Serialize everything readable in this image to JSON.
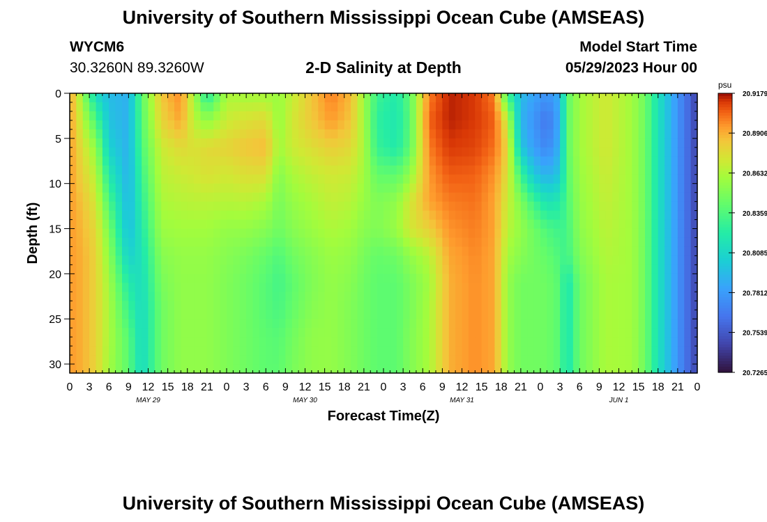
{
  "header": {
    "title": "University of Southern Mississippi Ocean Cube (AMSEAS)",
    "station": "WYCM6",
    "coordinates": "30.3260N  89.3260W",
    "subtitle": "2-D Salinity at Depth",
    "model_start_label": "Model Start Time",
    "model_start_value": "05/29/2023 Hour 00",
    "repeated_title": "University of Southern Mississippi Ocean Cube (AMSEAS)"
  },
  "chart_data": {
    "type": "heatmap",
    "title": "2-D Salinity at Depth",
    "xlabel": "Forecast Time(Z)",
    "ylabel": "Depth (ft)",
    "x_range_hours": [
      0,
      96
    ],
    "y_range_ft": [
      0,
      31
    ],
    "x_tick_labels": [
      "0",
      "3",
      "6",
      "9",
      "12",
      "15",
      "18",
      "21",
      "0",
      "3",
      "6",
      "9",
      "12",
      "15",
      "18",
      "21",
      "0",
      "3",
      "6",
      "9",
      "12",
      "15",
      "18",
      "21",
      "0",
      "3",
      "6",
      "9",
      "12",
      "15",
      "18",
      "21",
      "0"
    ],
    "y_ticks": [
      0,
      5,
      10,
      15,
      20,
      25,
      30
    ],
    "day_labels": [
      {
        "label": "MAY 29",
        "hour": 12
      },
      {
        "label": "MAY 30",
        "hour": 36
      },
      {
        "label": "MAY 31",
        "hour": 60
      },
      {
        "label": "JUN 1",
        "hour": 84
      }
    ],
    "colorbar": {
      "unit": "psu",
      "min": 20.7265,
      "max": 20.9179,
      "tick_labels": [
        "20.9179",
        "20.8906",
        "20.8632",
        "20.8359",
        "20.8085",
        "20.7812",
        "20.7539",
        "20.7265"
      ],
      "tick_values": [
        20.9179,
        20.8906,
        20.8632,
        20.8359,
        20.8085,
        20.7812,
        20.7539,
        20.7265
      ]
    },
    "field": {
      "description": "approximate salinity (psu) at hour x and depth y read from the color shading",
      "depths": [
        0,
        3,
        6,
        9,
        12,
        15,
        18,
        21,
        24,
        27,
        31
      ],
      "columns": [
        {
          "hour": 0,
          "values": [
            20.895,
            20.895,
            20.895,
            20.895,
            20.895,
            20.895,
            20.895,
            20.895,
            20.895,
            20.895,
            20.895
          ]
        },
        {
          "hour": 2,
          "values": [
            20.855,
            20.865,
            20.875,
            20.88,
            20.885,
            20.888,
            20.89,
            20.89,
            20.89,
            20.89,
            20.89
          ]
        },
        {
          "hour": 4,
          "values": [
            20.81,
            20.835,
            20.855,
            20.865,
            20.872,
            20.878,
            20.88,
            20.88,
            20.88,
            20.88,
            20.88
          ]
        },
        {
          "hour": 6,
          "values": [
            20.795,
            20.798,
            20.805,
            20.82,
            20.835,
            20.848,
            20.855,
            20.86,
            20.862,
            20.862,
            20.86
          ]
        },
        {
          "hour": 9,
          "values": [
            20.79,
            20.79,
            20.79,
            20.79,
            20.792,
            20.795,
            20.805,
            20.82,
            20.83,
            20.838,
            20.84
          ]
        },
        {
          "hour": 11,
          "values": [
            20.84,
            20.838,
            20.835,
            20.83,
            20.825,
            20.82,
            20.815,
            20.812,
            20.81,
            20.81,
            20.81
          ]
        },
        {
          "hour": 14,
          "values": [
            20.885,
            20.88,
            20.87,
            20.866,
            20.862,
            20.858,
            20.852,
            20.848,
            20.845,
            20.845,
            20.845
          ]
        },
        {
          "hour": 17,
          "values": [
            20.898,
            20.893,
            20.878,
            20.87,
            20.865,
            20.86,
            20.856,
            20.855,
            20.855,
            20.855,
            20.855
          ]
        },
        {
          "hour": 19,
          "values": [
            20.86,
            20.866,
            20.875,
            20.872,
            20.866,
            20.86,
            20.856,
            20.855,
            20.855,
            20.855,
            20.855
          ]
        },
        {
          "hour": 21,
          "values": [
            20.82,
            20.855,
            20.878,
            20.875,
            20.866,
            20.86,
            20.856,
            20.855,
            20.855,
            20.855,
            20.855
          ]
        },
        {
          "hour": 24,
          "values": [
            20.862,
            20.87,
            20.88,
            20.872,
            20.865,
            20.856,
            20.852,
            20.85,
            20.85,
            20.85,
            20.85
          ]
        },
        {
          "hour": 27,
          "values": [
            20.86,
            20.875,
            20.885,
            20.876,
            20.866,
            20.856,
            20.848,
            20.845,
            20.845,
            20.845,
            20.845
          ]
        },
        {
          "hour": 30,
          "values": [
            20.86,
            20.878,
            20.888,
            20.876,
            20.862,
            20.852,
            20.842,
            20.838,
            20.838,
            20.84,
            20.84
          ]
        },
        {
          "hour": 32,
          "values": [
            20.858,
            20.856,
            20.86,
            20.852,
            20.848,
            20.845,
            20.836,
            20.832,
            20.834,
            20.838,
            20.84
          ]
        },
        {
          "hour": 34,
          "values": [
            20.868,
            20.872,
            20.87,
            20.862,
            20.856,
            20.852,
            20.845,
            20.84,
            20.842,
            20.846,
            20.848
          ]
        },
        {
          "hour": 37,
          "values": [
            20.885,
            20.884,
            20.876,
            20.868,
            20.862,
            20.858,
            20.852,
            20.85,
            20.852,
            20.855,
            20.855
          ]
        },
        {
          "hour": 40,
          "values": [
            20.9,
            20.895,
            20.882,
            20.872,
            20.868,
            20.863,
            20.858,
            20.856,
            20.856,
            20.856,
            20.856
          ]
        },
        {
          "hour": 43,
          "values": [
            20.888,
            20.885,
            20.878,
            20.87,
            20.865,
            20.86,
            20.855,
            20.852,
            20.85,
            20.85,
            20.85
          ]
        },
        {
          "hour": 45,
          "values": [
            20.858,
            20.86,
            20.862,
            20.86,
            20.857,
            20.853,
            20.848,
            20.845,
            20.845,
            20.845,
            20.845
          ]
        },
        {
          "hour": 47,
          "values": [
            20.83,
            20.825,
            20.828,
            20.842,
            20.85,
            20.85,
            20.842,
            20.84,
            20.84,
            20.84,
            20.84
          ]
        },
        {
          "hour": 50,
          "values": [
            20.82,
            20.818,
            20.82,
            20.84,
            20.855,
            20.858,
            20.845,
            20.84,
            20.84,
            20.84,
            20.84
          ]
        },
        {
          "hour": 52,
          "values": [
            20.84,
            20.838,
            20.84,
            20.855,
            20.872,
            20.872,
            20.855,
            20.848,
            20.848,
            20.85,
            20.85
          ]
        },
        {
          "hour": 55,
          "values": [
            20.9,
            20.905,
            20.9,
            20.895,
            20.893,
            20.882,
            20.866,
            20.86,
            20.862,
            20.862,
            20.862
          ]
        },
        {
          "hour": 58,
          "values": [
            20.915,
            20.915,
            20.912,
            20.906,
            20.9,
            20.896,
            20.892,
            20.89,
            20.89,
            20.89,
            20.89
          ]
        },
        {
          "hour": 62,
          "values": [
            20.912,
            20.912,
            20.91,
            20.905,
            20.902,
            20.9,
            20.898,
            20.897,
            20.897,
            20.897,
            20.897
          ]
        },
        {
          "hour": 65,
          "values": [
            20.9,
            20.905,
            20.902,
            20.896,
            20.893,
            20.893,
            20.892,
            20.892,
            20.892,
            20.892,
            20.892
          ]
        },
        {
          "hour": 67,
          "values": [
            20.83,
            20.868,
            20.88,
            20.875,
            20.87,
            20.866,
            20.86,
            20.856,
            20.856,
            20.856,
            20.856
          ]
        },
        {
          "hour": 69,
          "values": [
            20.795,
            20.792,
            20.8,
            20.83,
            20.85,
            20.856,
            20.852,
            20.846,
            20.846,
            20.846,
            20.846
          ]
        },
        {
          "hour": 71,
          "values": [
            20.785,
            20.778,
            20.782,
            20.8,
            20.83,
            20.845,
            20.846,
            20.846,
            20.846,
            20.846,
            20.846
          ]
        },
        {
          "hour": 73,
          "values": [
            20.778,
            20.765,
            20.772,
            20.79,
            20.815,
            20.835,
            20.842,
            20.845,
            20.845,
            20.845,
            20.845
          ]
        },
        {
          "hour": 75,
          "values": [
            20.79,
            20.788,
            20.792,
            20.8,
            20.82,
            20.83,
            20.835,
            20.838,
            20.838,
            20.838,
            20.838
          ]
        },
        {
          "hour": 76,
          "values": [
            20.84,
            20.84,
            20.84,
            20.838,
            20.835,
            20.832,
            20.83,
            20.815,
            20.815,
            20.815,
            20.815
          ]
        },
        {
          "hour": 78,
          "values": [
            20.86,
            20.86,
            20.86,
            20.858,
            20.856,
            20.854,
            20.85,
            20.845,
            20.845,
            20.845,
            20.845
          ]
        },
        {
          "hour": 82,
          "values": [
            20.872,
            20.872,
            20.872,
            20.87,
            20.868,
            20.866,
            20.864,
            20.862,
            20.862,
            20.862,
            20.862
          ]
        },
        {
          "hour": 86,
          "values": [
            20.86,
            20.86,
            20.86,
            20.86,
            20.86,
            20.86,
            20.86,
            20.86,
            20.86,
            20.86,
            20.86
          ]
        },
        {
          "hour": 88,
          "values": [
            20.845,
            20.845,
            20.845,
            20.845,
            20.845,
            20.845,
            20.845,
            20.845,
            20.845,
            20.845,
            20.845
          ]
        },
        {
          "hour": 90,
          "values": [
            20.815,
            20.815,
            20.815,
            20.815,
            20.815,
            20.815,
            20.815,
            20.815,
            20.815,
            20.815,
            20.815
          ]
        },
        {
          "hour": 93,
          "values": [
            20.778,
            20.778,
            20.778,
            20.778,
            20.778,
            20.778,
            20.778,
            20.778,
            20.778,
            20.778,
            20.778
          ]
        },
        {
          "hour": 96,
          "values": [
            20.745,
            20.745,
            20.745,
            20.745,
            20.745,
            20.745,
            20.745,
            20.745,
            20.745,
            20.745,
            20.745
          ]
        }
      ]
    }
  }
}
